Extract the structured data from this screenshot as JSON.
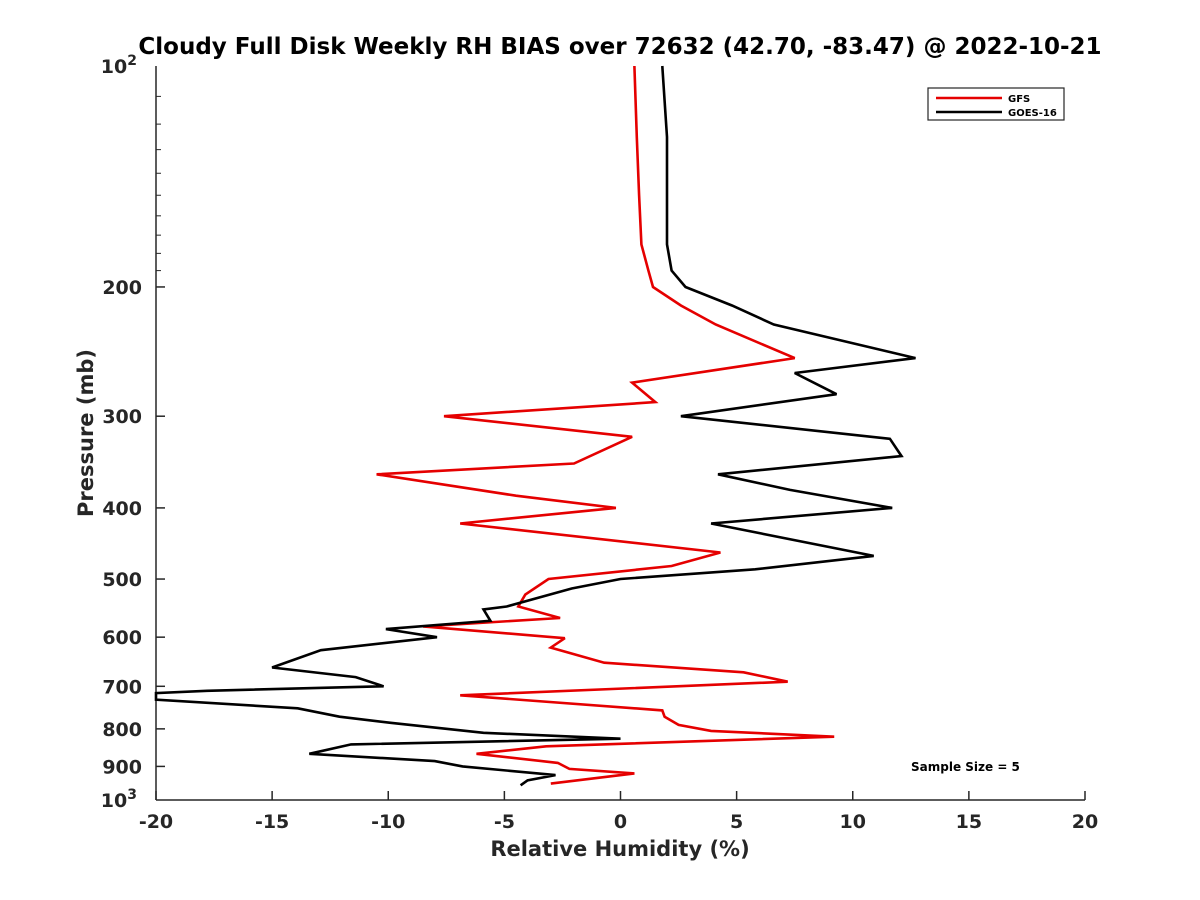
{
  "chart_data": {
    "type": "line",
    "title": "Cloudy Full Disk Weekly RH BIAS over 72632 (42.70, -83.47) @ 2022-10-21",
    "xlabel": "Relative Humidity (%)",
    "ylabel": "Pressure (mb)",
    "xlim": [
      -20,
      20
    ],
    "ylim": [
      100,
      1000
    ],
    "yscale": "log",
    "y_reversed": true,
    "grid": false,
    "legend_position": "top-right",
    "x_ticks": [
      -20,
      -15,
      -10,
      -5,
      0,
      5,
      10,
      15,
      20
    ],
    "x_tick_labels": [
      "-20",
      "-15",
      "-10",
      "-5",
      "0",
      "5",
      "10",
      "15",
      "20"
    ],
    "y_ticks": [
      200,
      300,
      400,
      500,
      600,
      700,
      800,
      900
    ],
    "y_tick_labels": [
      "200",
      "300",
      "400",
      "500",
      "600",
      "700",
      "800",
      "900"
    ],
    "y_top_label": {
      "base": "10",
      "exp": "2"
    },
    "y_bottom_label": {
      "base": "10",
      "exp": "3"
    },
    "annotation": "Sample Size = 5",
    "series": [
      {
        "name": "GFS",
        "color": "#e50000",
        "points": [
          [
            0.6,
            100
          ],
          [
            0.7,
            125
          ],
          [
            0.8,
            150
          ],
          [
            0.9,
            175
          ],
          [
            1.2,
            190
          ],
          [
            1.4,
            200
          ],
          [
            2.6,
            212
          ],
          [
            4.1,
            225
          ],
          [
            7.5,
            250
          ],
          [
            0.5,
            270
          ],
          [
            1.5,
            287
          ],
          [
            -7.6,
            300
          ],
          [
            0.5,
            320
          ],
          [
            -2.0,
            348
          ],
          [
            -10.5,
            360
          ],
          [
            -4.5,
            385
          ],
          [
            -0.2,
            400
          ],
          [
            -6.9,
            420
          ],
          [
            4.3,
            460
          ],
          [
            2.2,
            480
          ],
          [
            -3.1,
            500
          ],
          [
            -4.1,
            525
          ],
          [
            -4.4,
            545
          ],
          [
            -2.6,
            565
          ],
          [
            -8.5,
            580
          ],
          [
            -2.4,
            602
          ],
          [
            -3.0,
            620
          ],
          [
            -0.7,
            650
          ],
          [
            5.3,
            670
          ],
          [
            7.2,
            690
          ],
          [
            -6.9,
            720
          ],
          [
            1.8,
            755
          ],
          [
            1.9,
            770
          ],
          [
            2.5,
            790
          ],
          [
            3.9,
            805
          ],
          [
            9.2,
            820
          ],
          [
            -3.2,
            845
          ],
          [
            -6.2,
            865
          ],
          [
            -2.7,
            890
          ],
          [
            -2.2,
            907
          ],
          [
            0.6,
            920
          ],
          [
            -3.0,
            950
          ]
        ]
      },
      {
        "name": "GOES-16",
        "color": "#000000",
        "points": [
          [
            1.8,
            100
          ],
          [
            2.0,
            125
          ],
          [
            2.0,
            150
          ],
          [
            2.0,
            175
          ],
          [
            2.2,
            190
          ],
          [
            2.8,
            200
          ],
          [
            4.8,
            212
          ],
          [
            6.6,
            225
          ],
          [
            12.7,
            250
          ],
          [
            7.5,
            262
          ],
          [
            9.3,
            280
          ],
          [
            2.6,
            300
          ],
          [
            11.6,
            322
          ],
          [
            12.1,
            340
          ],
          [
            4.2,
            360
          ],
          [
            7.3,
            378
          ],
          [
            11.7,
            400
          ],
          [
            3.9,
            420
          ],
          [
            10.9,
            465
          ],
          [
            5.8,
            485
          ],
          [
            0.0,
            500
          ],
          [
            -2.1,
            515
          ],
          [
            -4.9,
            545
          ],
          [
            -5.9,
            550
          ],
          [
            -5.6,
            570
          ],
          [
            -10.1,
            585
          ],
          [
            -7.9,
            600
          ],
          [
            -12.9,
            625
          ],
          [
            -15.0,
            660
          ],
          [
            -11.4,
            680
          ],
          [
            -10.2,
            700
          ],
          [
            -17.8,
            710
          ],
          [
            -20.0,
            715
          ],
          [
            -20.0,
            730
          ],
          [
            -13.9,
            750
          ],
          [
            -12.1,
            770
          ],
          [
            -9.9,
            785
          ],
          [
            -5.9,
            810
          ],
          [
            0.0,
            825
          ],
          [
            -11.6,
            840
          ],
          [
            -13.4,
            865
          ],
          [
            -8.0,
            885
          ],
          [
            -6.8,
            900
          ],
          [
            -2.8,
            925
          ],
          [
            -4.0,
            940
          ],
          [
            -4.3,
            955
          ]
        ]
      }
    ]
  }
}
